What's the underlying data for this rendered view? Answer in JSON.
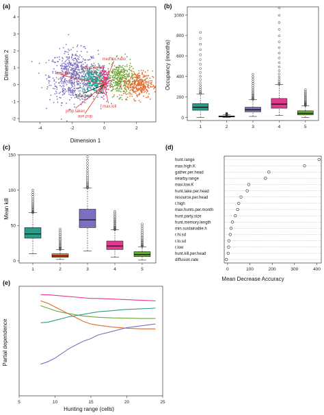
{
  "colors": {
    "c1": "#2a9d8a",
    "c2": "#e06a2b",
    "c3": "#7b6fc0",
    "c4": "#e13a8f",
    "c5": "#6aa338"
  },
  "panels": {
    "a": {
      "label": "(a)",
      "xlabel": "Dimension 1",
      "ylabel": "Dimension 2"
    },
    "b": {
      "label": "(b)",
      "xlabel": "",
      "ylabel": "Occupancy (months)"
    },
    "c": {
      "label": "(c)",
      "xlabel": "",
      "ylabel": "Mean kill"
    },
    "d": {
      "label": "(d)",
      "xlabel": "Mean Decrease Accuracy",
      "ylabel": ""
    },
    "e": {
      "label": "(e)",
      "xlabel": "Hunting range (cells)",
      "ylabel": "Partial dependence"
    }
  },
  "chart_data": [
    {
      "id": "a",
      "type": "scatter",
      "title": "",
      "xlabel": "Dimension 1",
      "ylabel": "Dimension 2",
      "xlim": [
        -5.3,
        3.2
      ],
      "ylim": [
        -2.2,
        4.6
      ],
      "xticks": [
        -4,
        -2,
        0,
        2
      ],
      "yticks": [
        -2,
        -1,
        0,
        1,
        2,
        3,
        4
      ],
      "clusters": [
        {
          "color": "c3",
          "cx": -1.9,
          "cy": 0.5,
          "sx": 0.75,
          "sy": 0.75,
          "n": 650
        },
        {
          "color": "c1",
          "cx": -0.6,
          "cy": 0.3,
          "sx": 0.35,
          "sy": 0.4,
          "n": 320
        },
        {
          "color": "c4",
          "cx": 0.05,
          "cy": 0.25,
          "sx": 0.18,
          "sy": 0.35,
          "n": 150
        },
        {
          "color": "c5",
          "cx": 0.95,
          "cy": 0.35,
          "sx": 0.4,
          "sy": 0.5,
          "n": 330
        },
        {
          "color": "c2",
          "cx": 2.1,
          "cy": 0.0,
          "sx": 0.45,
          "sy": 0.4,
          "n": 330
        }
      ],
      "arrows": [
        {
          "label": "med.loc.ratio",
          "x": 0.6,
          "y": 1.4,
          "color": "#e23b3b"
        },
        {
          "label": "max.overkill",
          "x": -0.7,
          "y": 0.9,
          "color": "#e23b3b"
        },
        {
          "label": "med.kill",
          "x": -2.6,
          "y": 0.55,
          "color": "#e23b3b"
        },
        {
          "label": "ticks",
          "x": -0.25,
          "y": -0.3,
          "color": "#111111"
        },
        {
          "label": "f.max.kill",
          "x": 0.25,
          "y": -1.1,
          "color": "#e23b3b"
        },
        {
          "label": "prop.taken",
          "x": -1.8,
          "y": -1.4,
          "color": "#e23b3b"
        },
        {
          "label": "ave.pop",
          "x": -1.2,
          "y": -1.7,
          "color": "#e23b3b"
        },
        {
          "label": "final.pop",
          "x": -1.3,
          "y": -0.5,
          "color": "#111111"
        }
      ]
    },
    {
      "id": "b",
      "type": "box",
      "title": "",
      "xlabel": "",
      "ylabel": "Occupancy (months)",
      "ylim": [
        -30,
        1080
      ],
      "yticks": [
        0,
        200,
        400,
        600,
        800,
        1000
      ],
      "categories": [
        "1",
        "2",
        "3",
        "4",
        "5"
      ],
      "boxes": [
        {
          "color": "c1",
          "wlo": 0,
          "q1": 70,
          "med": 100,
          "q3": 135,
          "whi": 230,
          "omax": 830
        },
        {
          "color": "c2",
          "wlo": 0,
          "q1": 5,
          "med": 10,
          "q3": 15,
          "whi": 25,
          "omax": 40
        },
        {
          "color": "c3",
          "wlo": 10,
          "q1": 55,
          "med": 75,
          "q3": 100,
          "whi": 175,
          "omax": 420
        },
        {
          "color": "c4",
          "wlo": 20,
          "q1": 90,
          "med": 130,
          "q3": 185,
          "whi": 320,
          "omax": 1070
        },
        {
          "color": "c5",
          "wlo": 0,
          "q1": 25,
          "med": 40,
          "q3": 65,
          "whi": 115,
          "omax": 270
        }
      ]
    },
    {
      "id": "c",
      "type": "box",
      "title": "",
      "xlabel": "",
      "ylabel": "Mean kill",
      "ylim": [
        -3,
        150
      ],
      "yticks": [
        0,
        50,
        100,
        150
      ],
      "categories": [
        "1",
        "2",
        "3",
        "4",
        "5"
      ],
      "boxes": [
        {
          "color": "c1",
          "wlo": 10,
          "q1": 32,
          "med": 38,
          "q3": 47,
          "whi": 68,
          "omax": 100
        },
        {
          "color": "c2",
          "wlo": 2,
          "q1": 5,
          "med": 7,
          "q3": 10,
          "whi": 16,
          "omax": 45
        },
        {
          "color": "c3",
          "wlo": 14,
          "q1": 47,
          "med": 58,
          "q3": 73,
          "whi": 103,
          "omax": 147
        },
        {
          "color": "c4",
          "wlo": 5,
          "q1": 16,
          "med": 21,
          "q3": 28,
          "whi": 44,
          "omax": 70
        },
        {
          "color": "c5",
          "wlo": 1,
          "q1": 6,
          "med": 9,
          "q3": 13,
          "whi": 20,
          "omax": 52
        }
      ]
    },
    {
      "id": "d",
      "type": "dot",
      "title": "",
      "xlabel": "Mean Decrease Accuracy",
      "ylabel": "",
      "xlim": [
        -15,
        420
      ],
      "xticks": [
        0,
        100,
        200,
        300,
        400
      ],
      "categories": [
        "hunt.range",
        "max.high.K",
        "gather.per.head",
        "nearby.range",
        "max.low.K",
        "hunt.take.per.head",
        "resource.per.head",
        "r.high",
        "max.hunts.per.month",
        "hunt.party.size",
        "hunt.memory.length",
        "min.sustainable.h",
        "r.hi.sd",
        "r.lo.sd",
        "r.low",
        "hunt.kill.per.head",
        "diffusion.rate"
      ],
      "values": [
        410,
        345,
        185,
        170,
        95,
        88,
        60,
        50,
        45,
        35,
        22,
        16,
        12,
        6,
        5,
        3,
        -5
      ]
    },
    {
      "id": "e",
      "type": "line",
      "title": "",
      "xlabel": "Hunting range (cells)",
      "ylabel": "Partial dependence",
      "xlim": [
        5,
        25
      ],
      "ylim": [
        -6.5,
        2.5
      ],
      "xticks": [
        5,
        10,
        15,
        20,
        25
      ],
      "x": [
        8,
        9,
        10,
        11,
        12,
        13,
        14,
        15,
        16,
        18,
        20,
        22,
        24
      ],
      "series": [
        {
          "color": "c4",
          "values": [
            1.8,
            1.8,
            1.75,
            1.7,
            1.65,
            1.6,
            1.55,
            1.5,
            1.5,
            1.45,
            1.4,
            1.35,
            1.3
          ]
        },
        {
          "color": "c2",
          "values": [
            1.3,
            1.1,
            0.8,
            0.5,
            0.2,
            -0.1,
            -0.4,
            -0.6,
            -0.7,
            -0.85,
            -0.95,
            -1.0,
            -1.0
          ]
        },
        {
          "color": "c5",
          "values": [
            0.9,
            0.7,
            0.5,
            0.35,
            0.25,
            0.15,
            0.05,
            0.0,
            -0.05,
            -0.1,
            -0.12,
            -0.15,
            -0.15
          ]
        },
        {
          "color": "c1",
          "values": [
            -0.5,
            -0.45,
            -0.3,
            -0.15,
            0.0,
            0.1,
            0.2,
            0.3,
            0.4,
            0.5,
            0.6,
            0.65,
            0.7
          ]
        },
        {
          "color": "c3",
          "values": [
            -3.9,
            -3.7,
            -3.4,
            -3.0,
            -2.6,
            -2.3,
            -2.0,
            -1.8,
            -1.5,
            -1.2,
            -0.9,
            -0.75,
            -0.6
          ]
        }
      ]
    }
  ]
}
